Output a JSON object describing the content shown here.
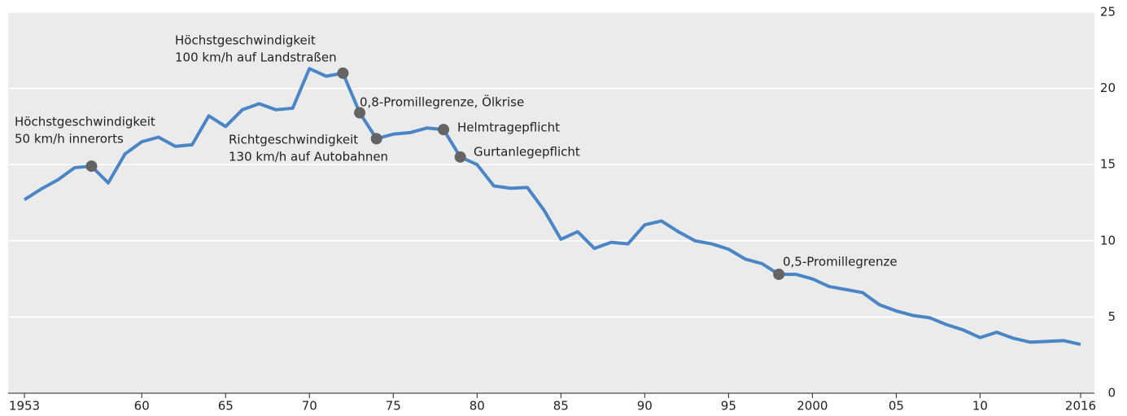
{
  "chart_data": {
    "type": "line",
    "x": [
      1953,
      1954,
      1955,
      1956,
      1957,
      1958,
      1959,
      1960,
      1961,
      1962,
      1963,
      1964,
      1965,
      1966,
      1967,
      1968,
      1969,
      1970,
      1971,
      1972,
      1973,
      1974,
      1975,
      1976,
      1977,
      1978,
      1979,
      1980,
      1981,
      1982,
      1983,
      1984,
      1985,
      1986,
      1987,
      1988,
      1989,
      1990,
      1991,
      1992,
      1993,
      1994,
      1995,
      1996,
      1997,
      1998,
      1999,
      2000,
      2001,
      2002,
      2003,
      2004,
      2005,
      2006,
      2007,
      2008,
      2009,
      2010,
      2011,
      2012,
      2013,
      2014,
      2015,
      2016
    ],
    "series": [
      {
        "color": "#4a86c5",
        "values": [
          12.7,
          13.4,
          14.0,
          14.8,
          14.9,
          13.8,
          15.7,
          16.5,
          16.8,
          16.2,
          16.3,
          18.2,
          17.5,
          18.6,
          19.0,
          18.6,
          18.7,
          21.3,
          20.8,
          21.0,
          18.4,
          16.7,
          17.0,
          17.1,
          17.4,
          17.3,
          15.5,
          15.0,
          13.6,
          13.45,
          13.5,
          12.0,
          10.1,
          10.6,
          9.5,
          9.9,
          9.8,
          11.05,
          11.3,
          10.6,
          10.0,
          9.8,
          9.45,
          8.8,
          8.5,
          7.8,
          7.8,
          7.5,
          7.0,
          6.8,
          6.6,
          5.8,
          5.4,
          5.1,
          4.95,
          4.5,
          4.15,
          3.65,
          4.0,
          3.6,
          3.35,
          3.4,
          3.45,
          3.2
        ]
      }
    ],
    "xlim": [
      1953,
      2016
    ],
    "xticks": [
      1953,
      {
        "value": 1960,
        "label": "60"
      },
      {
        "value": 1965,
        "label": "65"
      },
      {
        "value": 1970,
        "label": "70"
      },
      {
        "value": 1975,
        "label": "75"
      },
      {
        "value": 1980,
        "label": "80"
      },
      {
        "value": 1985,
        "label": "85"
      },
      {
        "value": 1990,
        "label": "90"
      },
      {
        "value": 1995,
        "label": "95"
      },
      2000,
      {
        "value": 2005,
        "label": "05"
      },
      {
        "value": 2010,
        "label": "10"
      },
      2016
    ],
    "ylim": [
      0,
      25
    ],
    "yticks": [
      0,
      5,
      10,
      15,
      20,
      25
    ],
    "grid": true,
    "annotations": [
      {
        "x": 1957,
        "lines": [
          "Höchstgeschwindigkeit",
          "50 km/h innerorts"
        ]
      },
      {
        "x": 1972,
        "lines": [
          "Höchstgeschwindigkeit",
          "100 km/h auf Landstraßen"
        ]
      },
      {
        "x": 1973,
        "lines": [
          "0,8-Promillegrenze, Ölkrise"
        ]
      },
      {
        "x": 1974,
        "lines": [
          "Richtgeschwindigkeit",
          "130 km/h auf Autobahnen"
        ]
      },
      {
        "x": 1978,
        "lines": [
          "Helmtragepflicht"
        ]
      },
      {
        "x": 1979,
        "lines": [
          "Gurtanlegepflicht"
        ]
      },
      {
        "x": 1998,
        "lines": [
          "0,5-Promillegrenze"
        ]
      }
    ]
  }
}
